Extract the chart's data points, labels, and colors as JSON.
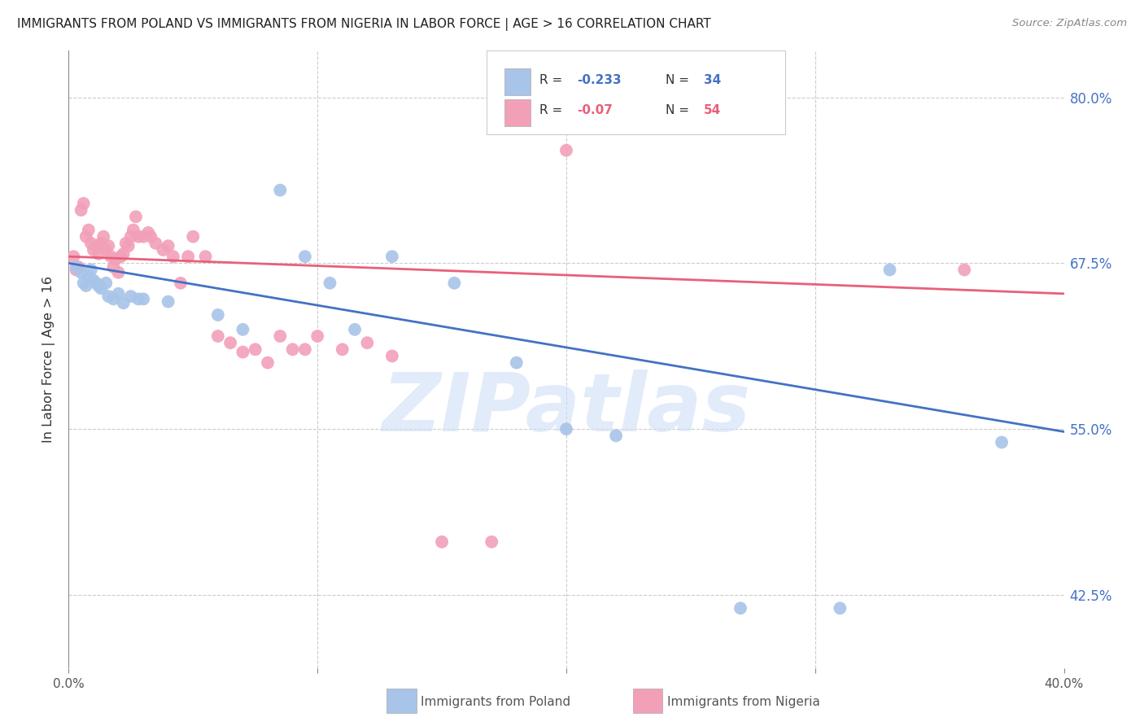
{
  "title": "IMMIGRANTS FROM POLAND VS IMMIGRANTS FROM NIGERIA IN LABOR FORCE | AGE > 16 CORRELATION CHART",
  "source": "Source: ZipAtlas.com",
  "ylabel": "In Labor Force | Age > 16",
  "ytick_labels": [
    "80.0%",
    "67.5%",
    "55.0%",
    "42.5%"
  ],
  "ytick_values": [
    0.8,
    0.675,
    0.55,
    0.425
  ],
  "xlim": [
    0.0,
    0.4
  ],
  "ylim": [
    0.37,
    0.835
  ],
  "xgrid_values": [
    0.1,
    0.2,
    0.3
  ],
  "poland_R": -0.233,
  "poland_N": 34,
  "nigeria_R": -0.07,
  "nigeria_N": 54,
  "poland_color": "#a8c4e8",
  "nigeria_color": "#f2a0b8",
  "poland_line_color": "#4472c4",
  "nigeria_line_color": "#e8607a",
  "watermark": "ZIPatlas",
  "poland_scatter_x": [
    0.003,
    0.005,
    0.006,
    0.007,
    0.008,
    0.009,
    0.01,
    0.011,
    0.012,
    0.013,
    0.015,
    0.016,
    0.018,
    0.02,
    0.022,
    0.025,
    0.028,
    0.03,
    0.04,
    0.06,
    0.07,
    0.085,
    0.095,
    0.105,
    0.115,
    0.13,
    0.155,
    0.18,
    0.2,
    0.22,
    0.27,
    0.31,
    0.33,
    0.375
  ],
  "poland_scatter_y": [
    0.672,
    0.668,
    0.66,
    0.658,
    0.665,
    0.67,
    0.662,
    0.66,
    0.658,
    0.656,
    0.66,
    0.65,
    0.648,
    0.652,
    0.645,
    0.65,
    0.648,
    0.648,
    0.646,
    0.636,
    0.625,
    0.73,
    0.68,
    0.66,
    0.625,
    0.68,
    0.66,
    0.6,
    0.55,
    0.545,
    0.415,
    0.415,
    0.67,
    0.54
  ],
  "nigeria_scatter_x": [
    0.002,
    0.003,
    0.004,
    0.005,
    0.006,
    0.007,
    0.008,
    0.009,
    0.01,
    0.011,
    0.012,
    0.013,
    0.014,
    0.015,
    0.016,
    0.017,
    0.018,
    0.019,
    0.02,
    0.021,
    0.022,
    0.023,
    0.024,
    0.025,
    0.026,
    0.027,
    0.028,
    0.03,
    0.032,
    0.033,
    0.035,
    0.038,
    0.04,
    0.042,
    0.045,
    0.048,
    0.05,
    0.055,
    0.06,
    0.065,
    0.07,
    0.075,
    0.08,
    0.085,
    0.09,
    0.095,
    0.1,
    0.11,
    0.12,
    0.13,
    0.15,
    0.17,
    0.2,
    0.36
  ],
  "nigeria_scatter_y": [
    0.68,
    0.67,
    0.672,
    0.715,
    0.72,
    0.695,
    0.7,
    0.69,
    0.685,
    0.688,
    0.682,
    0.69,
    0.695,
    0.685,
    0.688,
    0.68,
    0.672,
    0.678,
    0.668,
    0.68,
    0.682,
    0.69,
    0.688,
    0.695,
    0.7,
    0.71,
    0.695,
    0.695,
    0.698,
    0.695,
    0.69,
    0.685,
    0.688,
    0.68,
    0.66,
    0.68,
    0.695,
    0.68,
    0.62,
    0.615,
    0.608,
    0.61,
    0.6,
    0.62,
    0.61,
    0.61,
    0.62,
    0.61,
    0.615,
    0.605,
    0.465,
    0.465,
    0.76,
    0.67
  ]
}
